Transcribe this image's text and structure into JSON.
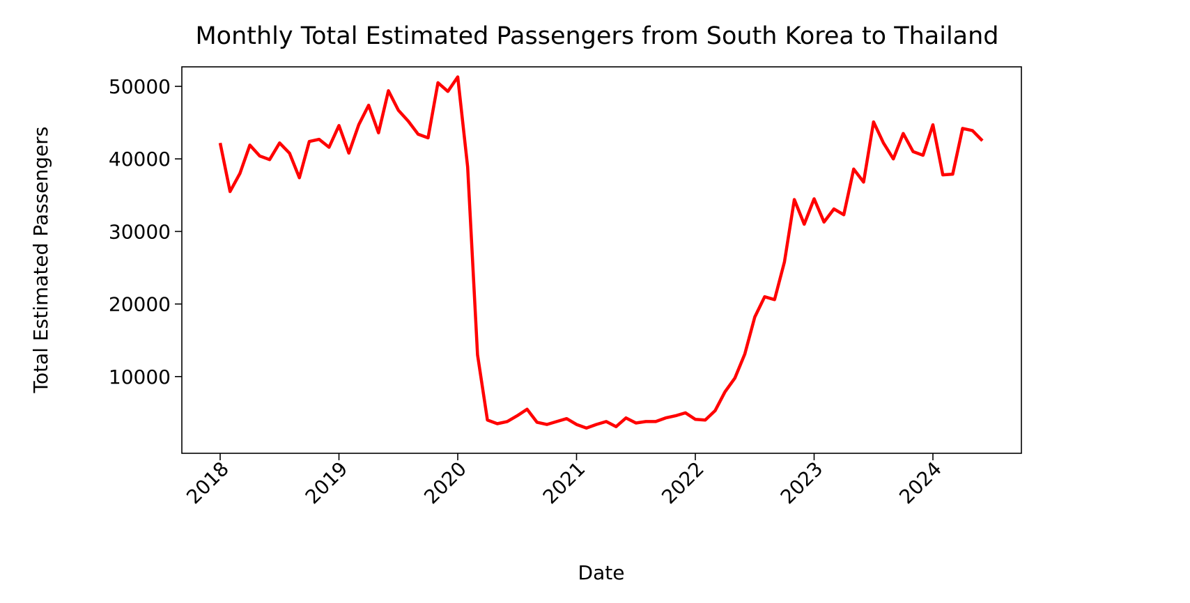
{
  "chart_data": {
    "type": "line",
    "title": "Monthly Total Estimated Passengers from South Korea to Thailand",
    "xlabel": "Date",
    "ylabel": "Total Estimated Passengers",
    "x_ticks": [
      "2018",
      "2019",
      "2020",
      "2021",
      "2022",
      "2023",
      "2024"
    ],
    "y_ticks": [
      10000,
      20000,
      30000,
      40000,
      50000
    ],
    "y_tick_labels": [
      "10000",
      "20000",
      "30000",
      "40000",
      "50000"
    ],
    "ylim": [
      0,
      54000
    ],
    "grid": false,
    "legend": "none",
    "line_color": "#ff0000",
    "series": [
      {
        "x": [
          "2018-01",
          "2018-02",
          "2018-03",
          "2018-04",
          "2018-05",
          "2018-06",
          "2018-07",
          "2018-08",
          "2018-09",
          "2018-10",
          "2018-11",
          "2018-12",
          "2019-01",
          "2019-02",
          "2019-03",
          "2019-04",
          "2019-05",
          "2019-06",
          "2019-07",
          "2019-08",
          "2019-09",
          "2019-10",
          "2019-11",
          "2019-12",
          "2020-01",
          "2020-02",
          "2020-03",
          "2020-04",
          "2020-05",
          "2020-06",
          "2020-07",
          "2020-08",
          "2020-09",
          "2020-10",
          "2020-11",
          "2020-12",
          "2021-01",
          "2021-02",
          "2021-03",
          "2021-04",
          "2021-05",
          "2021-06",
          "2021-07",
          "2021-08",
          "2021-09",
          "2021-10",
          "2021-11",
          "2021-12",
          "2022-01",
          "2022-02",
          "2022-03",
          "2022-04",
          "2022-05",
          "2022-06",
          "2022-07",
          "2022-08",
          "2022-09",
          "2022-10",
          "2022-11",
          "2022-12",
          "2023-01",
          "2023-02",
          "2023-03",
          "2023-04",
          "2023-05",
          "2023-06",
          "2023-07",
          "2023-08",
          "2023-09",
          "2023-10",
          "2023-11",
          "2023-12",
          "2024-01",
          "2024-02",
          "2024-03",
          "2024-04",
          "2024-05",
          "2024-06"
        ],
        "values": [
          42200,
          35500,
          38000,
          41900,
          40400,
          39900,
          42200,
          40800,
          37400,
          42400,
          42700,
          41600,
          44600,
          40800,
          44700,
          47400,
          43600,
          49400,
          46700,
          45200,
          43400,
          42900,
          50500,
          49300,
          51300,
          38900,
          13000,
          4000,
          3500,
          3800,
          4600,
          5500,
          3700,
          3400,
          3800,
          4200,
          3400,
          2900,
          3400,
          3800,
          3100,
          4300,
          3600,
          3800,
          3800,
          4300,
          4600,
          5000,
          4100,
          4000,
          5300,
          7900,
          9800,
          13100,
          18200,
          21000,
          20600,
          25800,
          34400,
          31000,
          34500,
          31300,
          33100,
          32300,
          38600,
          36800,
          45100,
          42200,
          40000,
          43500,
          41000,
          40500,
          44700,
          37800,
          37900,
          44200,
          43900,
          42500
        ]
      }
    ]
  }
}
